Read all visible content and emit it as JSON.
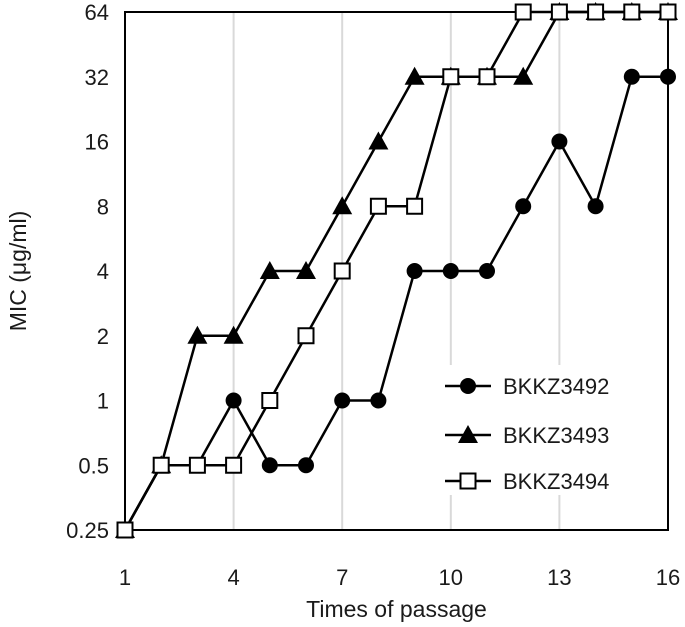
{
  "chart_data": {
    "type": "line",
    "xlabel": "Times of passage",
    "ylabel": "MIC (μg/ml)",
    "x": [
      1,
      2,
      3,
      4,
      5,
      6,
      7,
      8,
      9,
      10,
      11,
      12,
      13,
      14,
      15,
      16
    ],
    "xticks": [
      1,
      4,
      7,
      10,
      13,
      16
    ],
    "xlim": [
      1,
      16
    ],
    "yscale": "log2",
    "ylim": [
      0.25,
      64
    ],
    "yticks": [
      0.25,
      0.5,
      1,
      2,
      4,
      8,
      16,
      32,
      64
    ],
    "ytick_labels": [
      "0.25",
      "0.5",
      "1",
      "2",
      "4",
      "8",
      "16",
      "32",
      "64"
    ],
    "grid": "vertical",
    "legend_position": "bottom-right",
    "colors": {
      "line": "#000000",
      "grid": "#d9d9d9",
      "axis": "#000000"
    },
    "series": [
      {
        "name": "BKKZ3492",
        "marker": "circle-filled",
        "values": [
          0.25,
          0.5,
          0.5,
          1,
          0.5,
          0.5,
          1,
          1,
          4,
          4,
          4,
          8,
          16,
          8,
          32,
          32
        ]
      },
      {
        "name": "BKKZ3493",
        "marker": "triangle-filled",
        "values": [
          0.25,
          0.5,
          2,
          2,
          4,
          4,
          8,
          16,
          32,
          32,
          32,
          32,
          64,
          64,
          64,
          64
        ]
      },
      {
        "name": "BKKZ3494",
        "marker": "square-open",
        "values": [
          0.25,
          0.5,
          0.5,
          0.5,
          1,
          2,
          4,
          8,
          8,
          32,
          32,
          64,
          64,
          64,
          64,
          64
        ]
      }
    ]
  }
}
